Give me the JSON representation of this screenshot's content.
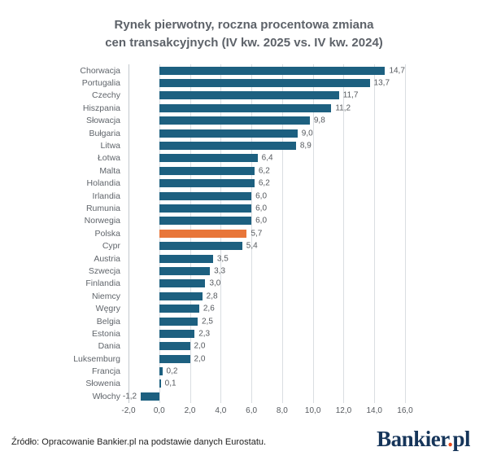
{
  "title": {
    "line1": "Rynek pierwotny, roczna procentowa zmiana",
    "line2": "cen transakcyjnych (IV kw. 2025 vs. IV kw. 2024)"
  },
  "chart_data": {
    "type": "bar",
    "orientation": "horizontal",
    "title": "Rynek pierwotny, roczna procentowa zmiana cen transakcyjnych (IV kw. 2025 vs. IV kw. 2024)",
    "categories": [
      "Chorwacja",
      "Portugalia",
      "Czechy",
      "Hiszpania",
      "Słowacja",
      "Bułgaria",
      "Litwa",
      "Łotwa",
      "Malta",
      "Holandia",
      "Irlandia",
      "Rumunia",
      "Norwegia",
      "Polska",
      "Cypr",
      "Austria",
      "Szwecja",
      "Finlandia",
      "Niemcy",
      "Węgry",
      "Belgia",
      "Estonia",
      "Dania",
      "Luksemburg",
      "Francja",
      "Słowenia",
      "Włochy"
    ],
    "values": [
      14.7,
      13.7,
      11.7,
      11.2,
      9.8,
      9.0,
      8.9,
      6.4,
      6.2,
      6.2,
      6.0,
      6.0,
      6.0,
      5.7,
      5.4,
      3.5,
      3.3,
      3.0,
      2.8,
      2.6,
      2.5,
      2.3,
      2.0,
      2.0,
      0.2,
      0.1,
      -1.2
    ],
    "value_labels": [
      "14,7",
      "13,7",
      "11,7",
      "11,2",
      "9,8",
      "9,0",
      "8,9",
      "6,4",
      "6,2",
      "6,2",
      "6,0",
      "6,0",
      "6,0",
      "5,7",
      "5,4",
      "3,5",
      "3,3",
      "3,0",
      "2,8",
      "2,6",
      "2,5",
      "2,3",
      "2,0",
      "2,0",
      "0,2",
      "0,1",
      "-1,2"
    ],
    "highlight_category": "Polska",
    "xlim": [
      -2.0,
      16.0
    ],
    "x_ticks": [
      {
        "value": -2,
        "label": "-2,0"
      },
      {
        "value": 0,
        "label": "0,0"
      },
      {
        "value": 2,
        "label": "2,0"
      },
      {
        "value": 4,
        "label": "4,0"
      },
      {
        "value": 6,
        "label": "6,0"
      },
      {
        "value": 8,
        "label": "8,0"
      },
      {
        "value": 10,
        "label": "10,0"
      },
      {
        "value": 12,
        "label": "12,0"
      },
      {
        "value": 14,
        "label": "14,0"
      },
      {
        "value": 16,
        "label": "16,0"
      }
    ],
    "grid": true,
    "colors": {
      "bar": "#1d6080",
      "highlight": "#e8763a",
      "gridline": "#dadee2",
      "plot_border": "#c3c8cd"
    }
  },
  "footer": {
    "source": "Źródło: Opracowanie Bankier.pl na podstawie danych Eurostatu.",
    "logo": {
      "text_main": "Bankier",
      "dot": ".",
      "text_suffix": "pl",
      "color_main": "#16355a",
      "color_dot": "#e8491c"
    }
  }
}
